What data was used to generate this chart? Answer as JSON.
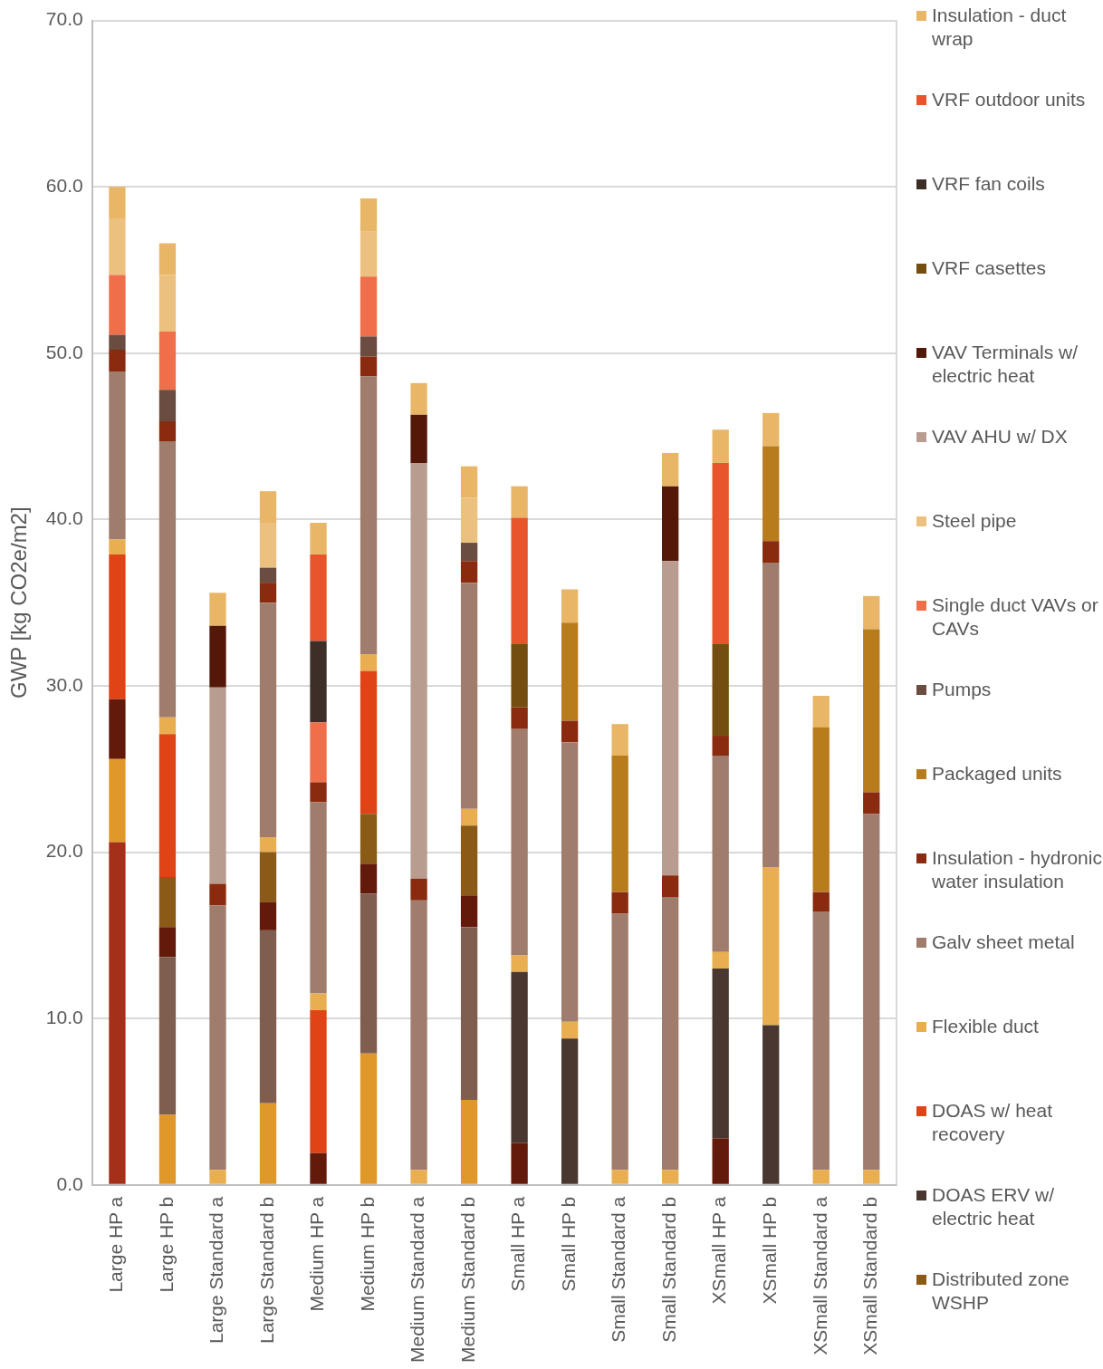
{
  "chart_data": {
    "type": "bar",
    "stacked": true,
    "ylabel": "GWP [kg CO2e/m2]",
    "categories": [
      "Large HP a",
      "Large HP b",
      "Large Standard a",
      "Large Standard b",
      "Medium HP a",
      "Medium HP b",
      "Medium Standard a",
      "Medium Standard b",
      "Small HP a",
      "Small HP b",
      "Small Standard a",
      "Small Standard b",
      "XSmall HP a",
      "XSmall HP b",
      "XSmall Standard a",
      "XSmall Standard b"
    ],
    "ylim": [
      0,
      70
    ],
    "yticks": [
      {
        "value": 0,
        "label": "0.0"
      },
      {
        "value": 10,
        "label": "10.0"
      },
      {
        "value": 20,
        "label": "20.0"
      },
      {
        "value": 30,
        "label": "30.0"
      },
      {
        "value": 40,
        "label": "40.0"
      },
      {
        "value": 50,
        "label": "50.0"
      },
      {
        "value": 60,
        "label": "60.0"
      },
      {
        "value": 70,
        "label": "70.0"
      }
    ],
    "grid": "y",
    "legend": "right",
    "series": [
      {
        "color": "#a5301a",
        "values": [
          20.6,
          null,
          null,
          null,
          null,
          null,
          null,
          null,
          null,
          null,
          null,
          null,
          null,
          null,
          null,
          null
        ]
      },
      {
        "color": "#e0982a",
        "values": [
          5.0,
          4.2,
          null,
          4.9,
          null,
          7.9,
          null,
          5.1,
          null,
          null,
          null,
          null,
          null,
          null,
          null,
          null
        ]
      },
      {
        "color": "#7f5e50",
        "values": [
          null,
          9.5,
          null,
          10.4,
          null,
          9.6,
          null,
          10.4,
          null,
          null,
          null,
          null,
          null,
          null,
          null,
          null
        ]
      },
      {
        "color": "#641a0a",
        "values": [
          3.6,
          1.8,
          null,
          1.7,
          1.9,
          1.8,
          null,
          1.9,
          2.5,
          null,
          null,
          null,
          2.8,
          null,
          null,
          null
        ]
      },
      {
        "name": "Distributed zone WSHP",
        "color": "#8a5a16",
        "values": [
          null,
          3.0,
          null,
          3.0,
          null,
          3.0,
          null,
          4.2,
          null,
          null,
          null,
          null,
          null,
          null,
          null,
          null
        ]
      },
      {
        "name": "DOAS ERV w/ electric heat",
        "color": "#4a3830",
        "values": [
          null,
          null,
          null,
          null,
          null,
          null,
          null,
          null,
          10.3,
          8.8,
          null,
          null,
          10.2,
          9.6,
          null,
          null
        ]
      },
      {
        "name": "DOAS w/ heat recovery",
        "color": "#e04416",
        "values": [
          8.7,
          8.6,
          null,
          null,
          8.6,
          8.6,
          null,
          null,
          null,
          null,
          null,
          null,
          null,
          null,
          null,
          null
        ]
      },
      {
        "name": "Flexible duct",
        "color": "#e8ae50",
        "values": [
          0.9,
          1.0,
          0.9,
          0.9,
          1.0,
          1.0,
          0.9,
          1.0,
          1.0,
          1.0,
          0.9,
          0.9,
          1.0,
          9.5,
          0.9,
          0.9
        ]
      },
      {
        "name": "Galv sheet metal",
        "color": "#a07c6c",
        "values": [
          10.1,
          16.6,
          15.9,
          14.1,
          11.5,
          16.7,
          16.2,
          13.6,
          13.6,
          16.8,
          15.4,
          16.4,
          11.8,
          18.3,
          15.5,
          21.4
        ]
      },
      {
        "name": "Insulation - hydronic water insulation",
        "color": "#8a2a0e",
        "values": [
          1.3,
          1.2,
          1.3,
          1.2,
          1.2,
          1.2,
          1.3,
          1.3,
          1.3,
          1.3,
          1.3,
          1.3,
          1.2,
          1.3,
          1.2,
          1.3
        ]
      },
      {
        "name": "Packaged units",
        "color": "#b87c1c",
        "values": [
          null,
          null,
          null,
          null,
          null,
          null,
          null,
          null,
          null,
          5.9,
          8.2,
          null,
          null,
          5.7,
          9.9,
          9.8
        ]
      },
      {
        "name": "Pumps",
        "color": "#6a4c40",
        "values": [
          0.9,
          1.9,
          null,
          0.9,
          null,
          1.2,
          null,
          1.1,
          null,
          null,
          null,
          null,
          null,
          null,
          null,
          null
        ]
      },
      {
        "name": "Single duct VAVs or CAVs",
        "color": "#ef6f4a",
        "values": [
          3.6,
          3.5,
          null,
          null,
          3.6,
          3.6,
          null,
          null,
          null,
          null,
          null,
          null,
          null,
          null,
          null,
          null
        ]
      },
      {
        "name": "Steel pipe",
        "color": "#ecc07e",
        "values": [
          3.4,
          3.4,
          null,
          2.7,
          null,
          2.7,
          null,
          2.7,
          null,
          null,
          null,
          null,
          null,
          null,
          null,
          null
        ]
      },
      {
        "name": "VAV AHU w/ DX",
        "color": "#b89c90",
        "values": [
          null,
          null,
          11.8,
          null,
          null,
          null,
          25.0,
          null,
          null,
          null,
          null,
          18.9,
          null,
          null,
          null,
          null
        ]
      },
      {
        "name": "VAV Terminals w/ electric heat",
        "color": "#541808",
        "values": [
          null,
          null,
          3.7,
          null,
          null,
          null,
          2.9,
          null,
          null,
          null,
          null,
          4.5,
          null,
          null,
          null,
          null
        ]
      },
      {
        "name": "VRF casettes",
        "color": "#744e10",
        "values": [
          null,
          null,
          null,
          null,
          null,
          null,
          null,
          null,
          3.8,
          null,
          null,
          null,
          5.5,
          null,
          null,
          null
        ]
      },
      {
        "name": "VRF fan coils",
        "color": "#3e2e28",
        "values": [
          null,
          null,
          null,
          null,
          4.9,
          null,
          null,
          null,
          null,
          null,
          null,
          null,
          null,
          null,
          null,
          null
        ]
      },
      {
        "name": "VRF outdoor units",
        "color": "#e8552c",
        "values": [
          null,
          null,
          null,
          null,
          5.2,
          null,
          null,
          null,
          7.6,
          null,
          null,
          null,
          10.9,
          null,
          null,
          null
        ]
      },
      {
        "name": "Insulation - duct wrap",
        "color": "#e8b666",
        "values": [
          1.9,
          1.9,
          2.0,
          1.9,
          1.9,
          2.0,
          1.9,
          1.9,
          1.9,
          2.0,
          1.9,
          2.0,
          2.0,
          2.0,
          1.9,
          2.0
        ]
      }
    ]
  }
}
